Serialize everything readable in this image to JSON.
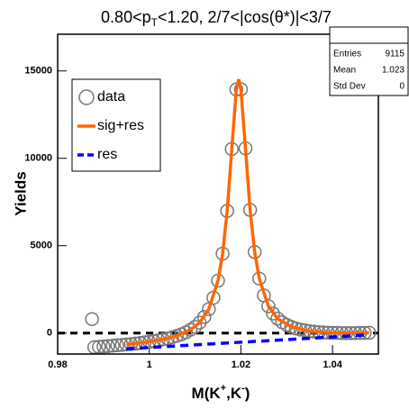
{
  "chart_data": {
    "type": "scatter",
    "title_parts": [
      "0.80<p",
      "T",
      "<1.20, 2/7<|cos(θ*)|<3/7"
    ],
    "xlabel_parts": [
      "M(K",
      "+",
      ",K",
      "-",
      ")"
    ],
    "ylabel": "Yields",
    "xlim": [
      0.98,
      1.05
    ],
    "ylim": [
      -1200,
      17100
    ],
    "xticks": [
      0.98,
      1,
      1.02,
      1.04
    ],
    "yticks": [
      0,
      5000,
      10000,
      15000
    ],
    "series": [
      {
        "name": "data",
        "color": "#777777",
        "style": "markers",
        "x": [
          0.9875,
          0.988,
          0.989,
          0.99,
          0.991,
          0.992,
          0.993,
          0.994,
          0.995,
          0.996,
          0.997,
          0.998,
          0.999,
          1,
          1.001,
          1.002,
          1.003,
          1.004,
          1.005,
          1.006,
          1.007,
          1.008,
          1.009,
          1.01,
          1.011,
          1.012,
          1.013,
          1.014,
          1.015,
          1.016,
          1.017,
          1.018,
          1.019,
          1.02,
          1.021,
          1.022,
          1.023,
          1.024,
          1.025,
          1.026,
          1.027,
          1.028,
          1.029,
          1.03,
          1.031,
          1.032,
          1.033,
          1.034,
          1.035,
          1.036,
          1.037,
          1.038,
          1.039,
          1.04,
          1.041,
          1.042,
          1.043,
          1.044,
          1.045,
          1.046,
          1.047,
          1.048
        ],
        "values": [
          800,
          -810,
          -790,
          -770,
          -750,
          -720,
          -700,
          -680,
          -650,
          -630,
          -600,
          -570,
          -530,
          -500,
          -460,
          -410,
          -360,
          -310,
          -240,
          -160,
          -70,
          40,
          190,
          360,
          600,
          920,
          1370,
          2020,
          3000,
          4540,
          6990,
          10530,
          13940,
          13950,
          10570,
          7050,
          4640,
          3120,
          2160,
          1540,
          1120,
          830,
          620,
          470,
          350,
          260,
          200,
          150,
          110,
          80,
          50,
          40,
          20,
          10,
          10,
          0,
          0,
          0,
          0,
          10,
          10,
          20
        ]
      },
      {
        "name": "sig+res",
        "color": "#ff6600",
        "style": "solid",
        "x": [
          0.995,
          0.999,
          1.003,
          1.006,
          1.009,
          1.011,
          1.013,
          1.015,
          1.016,
          1.017,
          1.018,
          1.019,
          1.0195,
          1.02,
          1.021,
          1.022,
          1.023,
          1.024,
          1.026,
          1.028,
          1.031,
          1.035,
          1.04,
          1.048
        ],
        "values": [
          -650,
          -530,
          -360,
          -160,
          190,
          600,
          1370,
          3000,
          4540,
          6990,
          10530,
          13940,
          14520,
          13950,
          10570,
          7050,
          4640,
          3120,
          1540,
          830,
          350,
          110,
          10,
          20
        ]
      },
      {
        "name": "res",
        "color": "#0000ff",
        "style": "dashed",
        "x": [
          0.995,
          1.048
        ],
        "values": [
          -900,
          -100
        ]
      }
    ],
    "stats": {
      "rows": [
        [
          "Entries",
          "9115"
        ],
        [
          "Mean",
          "1.023"
        ],
        [
          "Std Dev",
          "0"
        ]
      ]
    }
  }
}
